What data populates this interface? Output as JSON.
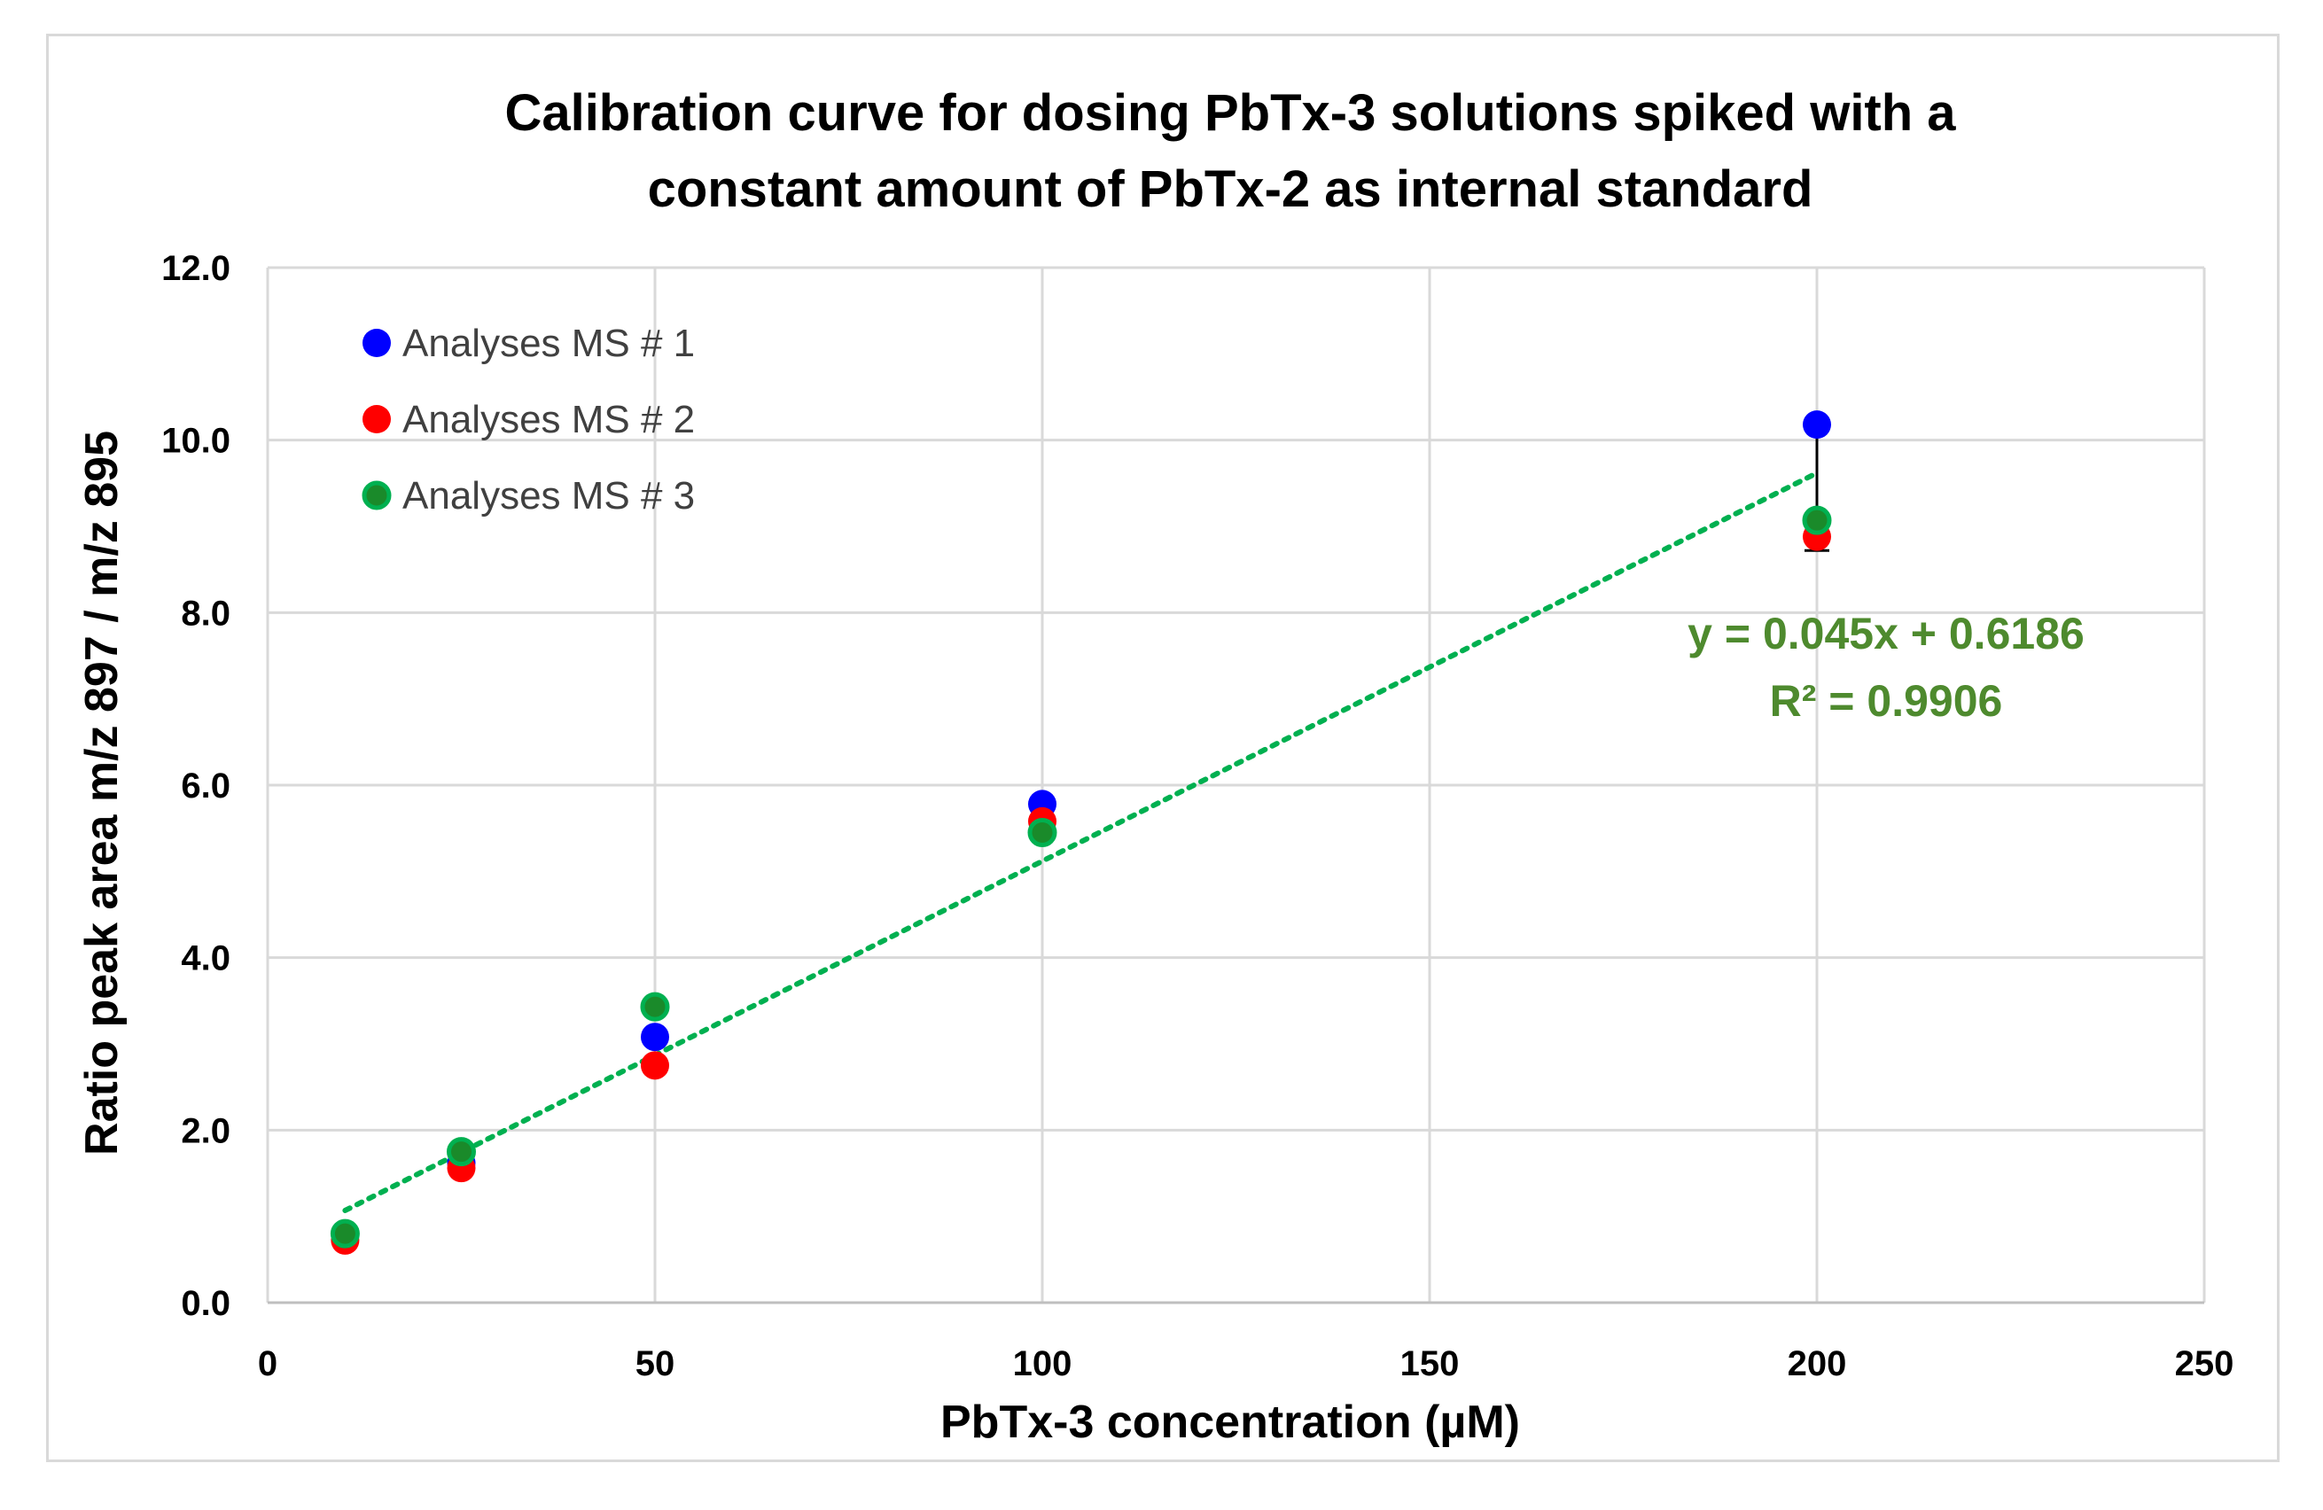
{
  "chart_data": {
    "type": "scatter",
    "title": "Calibration curve for dosing PbTx-3 solutions spiked with a constant amount of PbTx-2 as internal standard",
    "title_lines": [
      "Calibration curve for dosing PbTx-3 solutions spiked with a",
      "constant amount of PbTx-2 as internal standard"
    ],
    "xlabel": "PbTx-3 concentration (µM)",
    "ylabel": "Ratio peak area m/z 897 / m/z 895",
    "xlim": [
      0,
      250
    ],
    "ylim": [
      0,
      12
    ],
    "x_ticks": [
      0,
      50,
      100,
      150,
      200,
      250
    ],
    "x_tick_labels": [
      "0",
      "50",
      "100",
      "150",
      "200",
      "250"
    ],
    "y_ticks": [
      0,
      2,
      4,
      6,
      8,
      10,
      12
    ],
    "y_tick_labels": [
      "0.0",
      "2.0",
      "4.0",
      "6.0",
      "8.0",
      "10.0",
      "12.0"
    ],
    "grid": true,
    "legend_position": "top-left",
    "series": [
      {
        "name": "Analyses MS # 1",
        "color": "#0000ff",
        "x": [
          10,
          25,
          50,
          100,
          200
        ],
        "y": [
          0.78,
          1.62,
          3.08,
          5.78,
          10.18
        ]
      },
      {
        "name": "Analyses MS # 2",
        "color": "#ff0000",
        "x": [
          10,
          25,
          50,
          100,
          200
        ],
        "y": [
          0.72,
          1.56,
          2.75,
          5.58,
          8.88
        ]
      },
      {
        "name": "Analyses MS # 3",
        "color": "#1a8a2a",
        "edge_color": "#00b050",
        "x": [
          10,
          25,
          50,
          100,
          200
        ],
        "y": [
          0.8,
          1.75,
          3.43,
          5.45,
          9.07
        ]
      }
    ],
    "error_bar": {
      "x": 200,
      "y_low": 8.72,
      "y_high": 10.18,
      "color": "#000000"
    },
    "trendline": {
      "type": "linear",
      "slope": 0.045,
      "intercept": 0.6186,
      "x_range": [
        10,
        200
      ],
      "color": "#00b050",
      "style": "dotted",
      "equation_label": "y = 0.045x + 0.6186",
      "r2_label": "R² = 0.9906",
      "label_color": "#4e8a2e"
    }
  }
}
